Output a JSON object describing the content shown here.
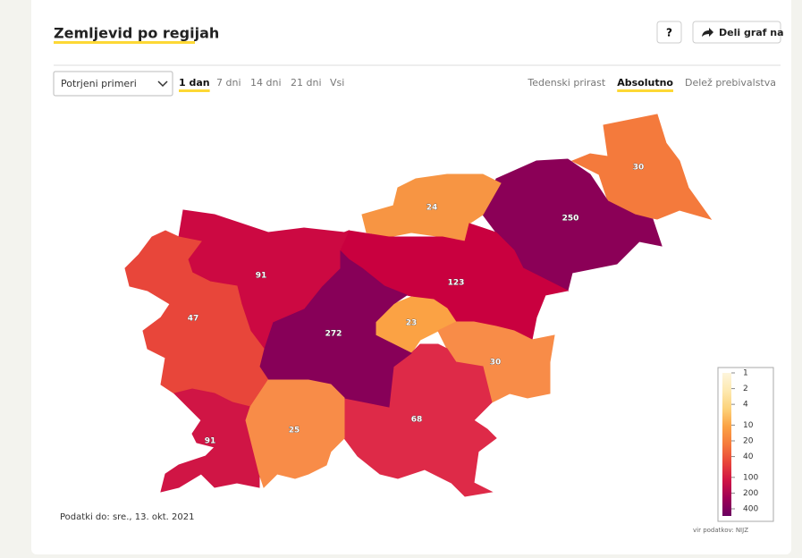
{
  "header": {
    "title": "Zemljevid po regijah",
    "help": "?",
    "share": "Deli graf na"
  },
  "controls": {
    "select": "Potrjeni primeri",
    "periods": [
      "1 dan",
      "7 dni",
      "14 dni",
      "21 dni",
      "Vsi"
    ],
    "active_period": 0,
    "modes": [
      "Tedenski prirast",
      "Absolutno",
      "Delež prebivalstva"
    ],
    "active_mode": 1
  },
  "map": {
    "regions": [
      {
        "value": 30,
        "color": "#f47a3c"
      },
      {
        "value": 250,
        "color": "#8b0057"
      },
      {
        "value": 24,
        "color": "#f79543"
      },
      {
        "value": 123,
        "color": "#c9003f"
      },
      {
        "value": 23,
        "color": "#fba244"
      },
      {
        "value": 30,
        "color": "#f88c48"
      },
      {
        "value": 68,
        "color": "#de2a48"
      },
      {
        "value": 272,
        "color": "#870058"
      },
      {
        "value": 91,
        "color": "#cc0942"
      },
      {
        "value": 47,
        "color": "#e8463a"
      },
      {
        "value": 91,
        "color": "#d01545"
      },
      {
        "value": 25,
        "color": "#f88c48"
      }
    ],
    "legend": {
      "ticks": [
        1,
        2,
        4,
        10,
        20,
        40,
        100,
        200,
        400
      ],
      "colors": [
        "#fdf5dc",
        "#fde9b0",
        "#fcd27a",
        "#fba244",
        "#f57a3c",
        "#e8463a",
        "#d01545",
        "#9e0055",
        "#6a0060"
      ]
    },
    "source": "vir podatkov: NIJZ"
  },
  "footer": "Podatki do: sre., 13. okt. 2021"
}
